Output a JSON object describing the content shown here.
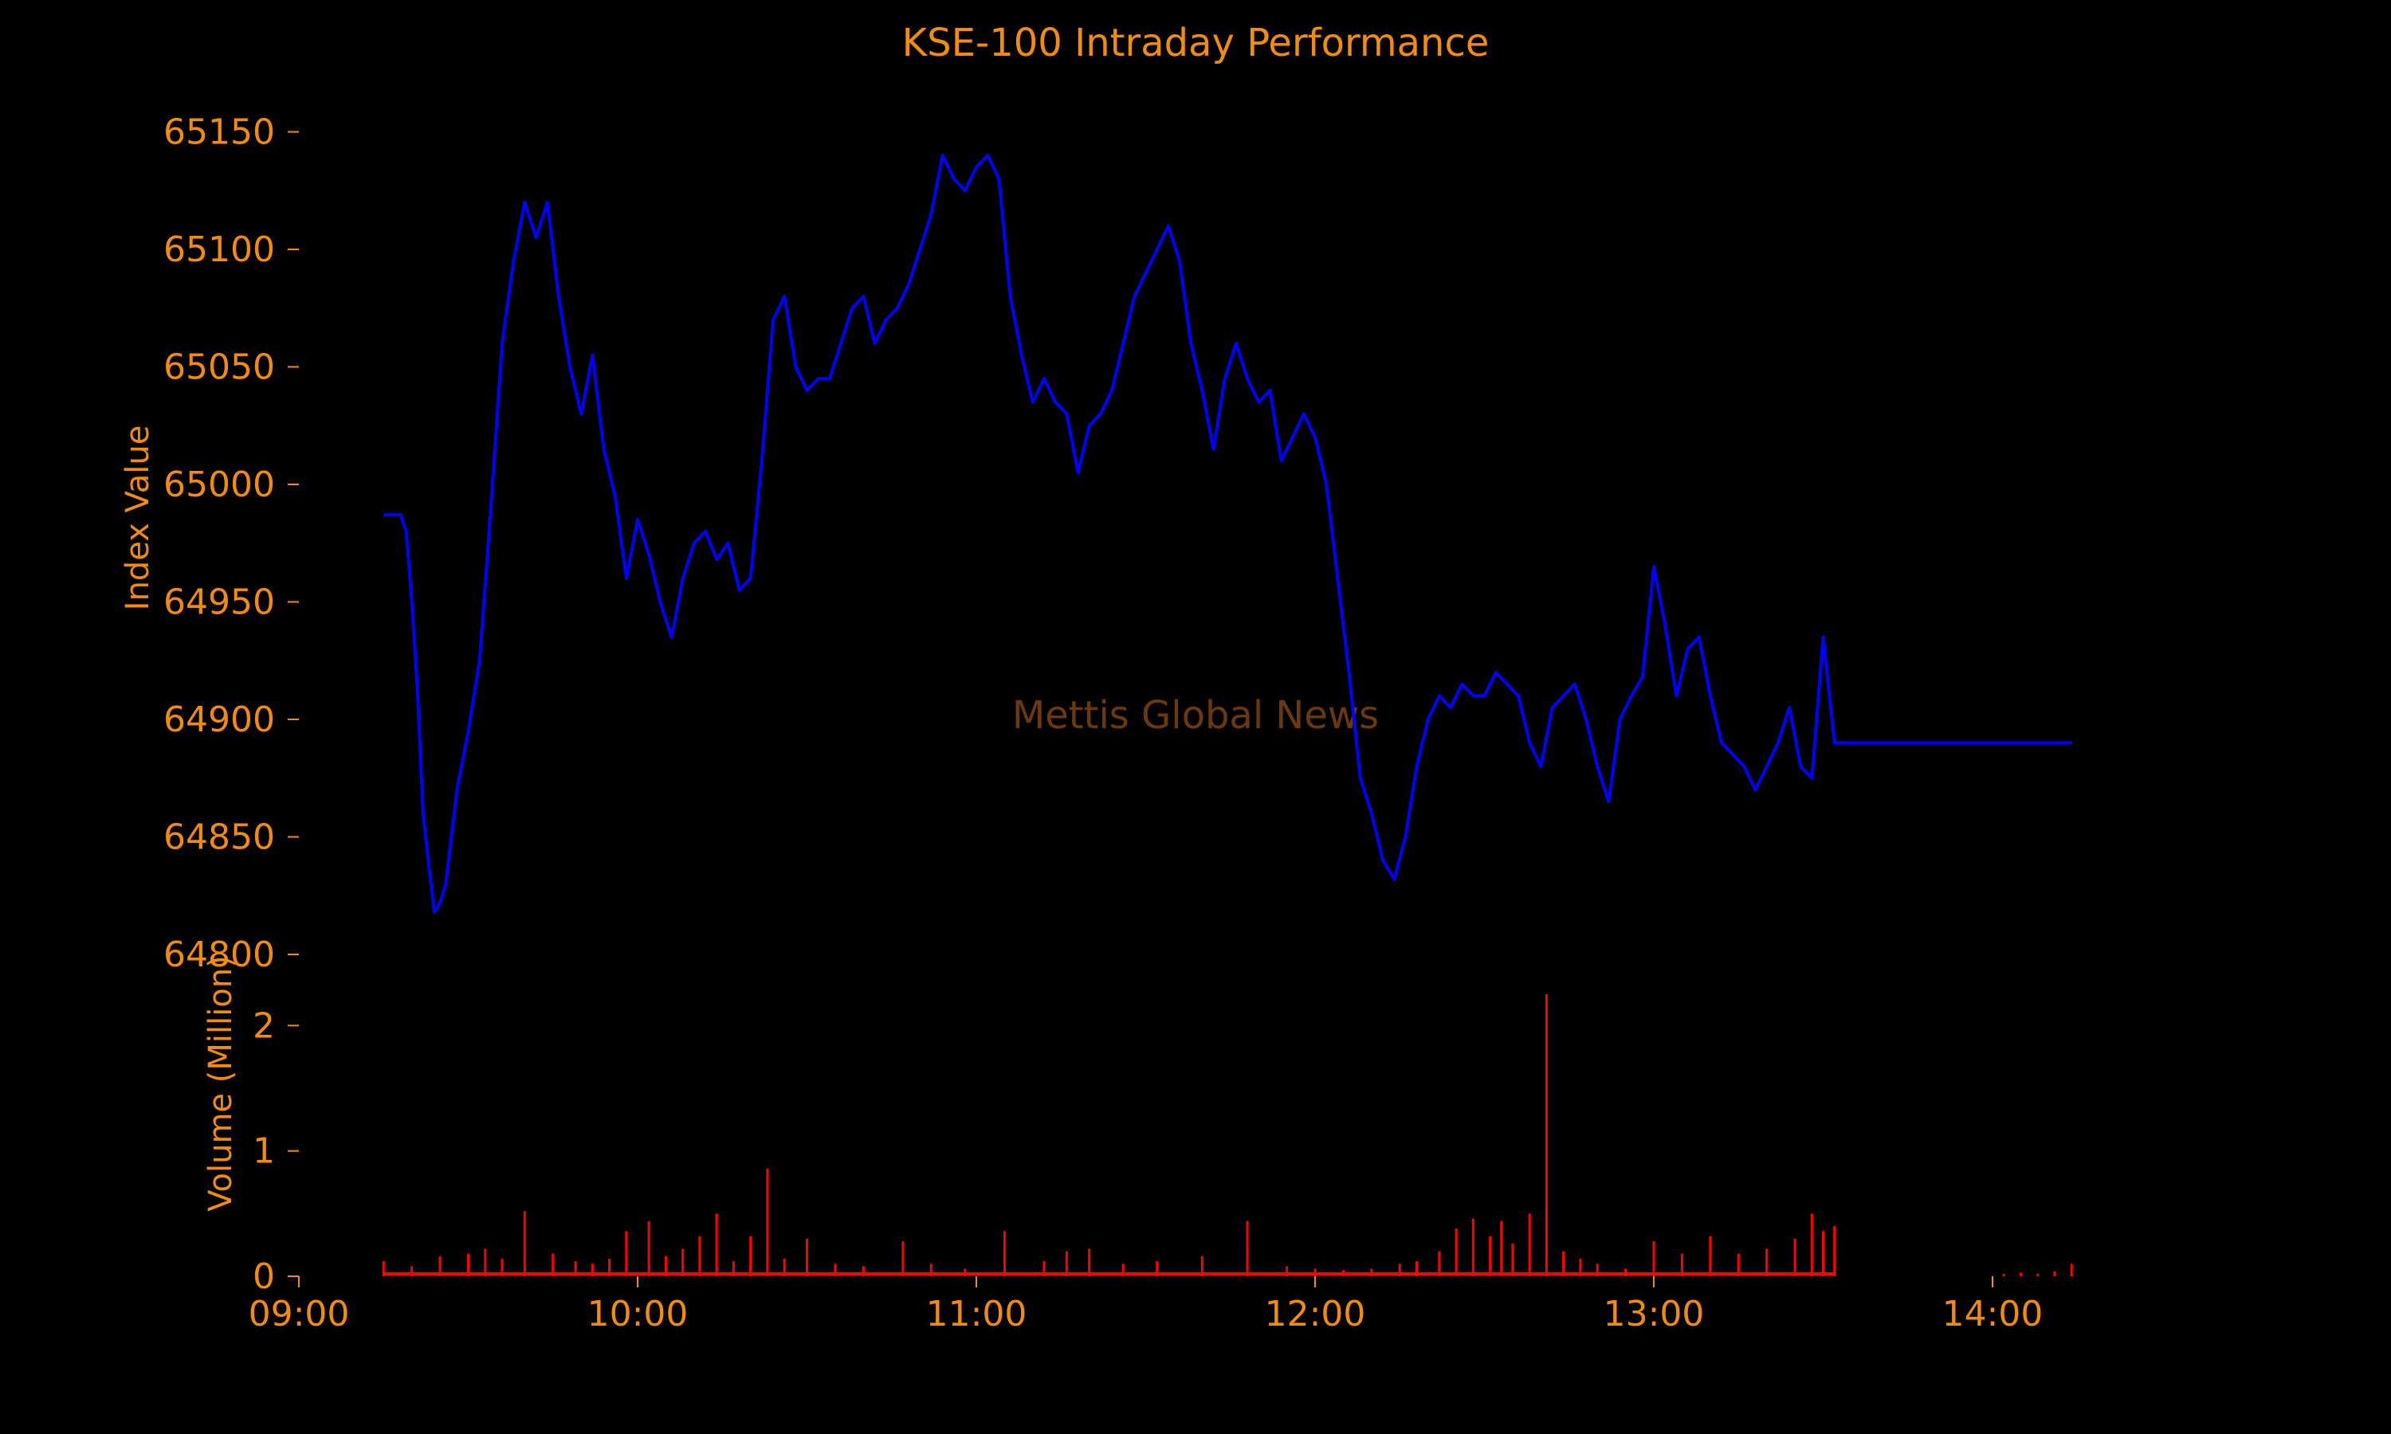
{
  "chart_data": {
    "type": "line",
    "title": "KSE-100 Intraday Performance",
    "watermark": "Mettis Global News",
    "colors": {
      "background": "#000000",
      "text": "#f28c0f",
      "index_line": "#0000ff",
      "volume_bars": "#ff0000",
      "watermark": "#6b3a0c"
    },
    "grid": false,
    "x_axis": {
      "range": [
        "09:00",
        "14:30"
      ],
      "tick_labels": [
        "09:00",
        "10:00",
        "11:00",
        "12:00",
        "13:00",
        "14:00"
      ]
    },
    "index_panel": {
      "ylabel": "Index Value",
      "ylim": [
        64800,
        65160
      ],
      "yticks": [
        64800,
        64850,
        64900,
        64950,
        65000,
        65050,
        65100,
        65150
      ],
      "series": [
        {
          "x": [
            "09:15",
            "09:18",
            "09:19",
            "09:20",
            "09:21",
            "09:22",
            "09:23",
            "09:24",
            "09:25",
            "09:26",
            "09:28",
            "09:30",
            "09:32",
            "09:34",
            "09:36",
            "09:38",
            "09:40",
            "09:42",
            "09:44",
            "09:46",
            "09:48",
            "09:50",
            "09:52",
            "09:54",
            "09:56",
            "09:58",
            "10:00",
            "10:02",
            "10:04",
            "10:06",
            "10:08",
            "10:10",
            "10:12",
            "10:14",
            "10:16",
            "10:18",
            "10:20",
            "10:22",
            "10:24",
            "10:26",
            "10:28",
            "10:30",
            "10:32",
            "10:34",
            "10:36",
            "10:38",
            "10:40",
            "10:42",
            "10:44",
            "10:46",
            "10:48",
            "10:50",
            "10:52",
            "10:54",
            "10:56",
            "10:58",
            "11:00",
            "11:02",
            "11:04",
            "11:06",
            "11:08",
            "11:10",
            "11:12",
            "11:14",
            "11:16",
            "11:18",
            "11:20",
            "11:22",
            "11:24",
            "11:26",
            "11:28",
            "11:30",
            "11:32",
            "11:34",
            "11:36",
            "11:38",
            "11:40",
            "11:42",
            "11:44",
            "11:46",
            "11:48",
            "11:50",
            "11:52",
            "11:54",
            "11:56",
            "11:58",
            "12:00",
            "12:02",
            "12:04",
            "12:06",
            "12:08",
            "12:10",
            "12:12",
            "12:14",
            "12:16",
            "12:18",
            "12:20",
            "12:22",
            "12:24",
            "12:26",
            "12:28",
            "12:30",
            "12:32",
            "12:34",
            "12:36",
            "12:38",
            "12:40",
            "12:42",
            "12:44",
            "12:46",
            "12:48",
            "12:50",
            "12:52",
            "12:54",
            "12:56",
            "12:58",
            "13:00",
            "13:02",
            "13:04",
            "13:06",
            "13:08",
            "13:10",
            "13:12",
            "13:14",
            "13:16",
            "13:18",
            "13:20",
            "13:22",
            "13:24",
            "13:26",
            "13:28",
            "13:30",
            "13:32",
            "14:14"
          ],
          "values": [
            64987,
            64987,
            64980,
            64950,
            64912,
            64860,
            64838,
            64818,
            64822,
            64830,
            64870,
            64895,
            64925,
            64990,
            65060,
            65095,
            65120,
            65105,
            65120,
            65080,
            65050,
            65030,
            65055,
            65015,
            64995,
            64960,
            64985,
            64970,
            64950,
            64935,
            64960,
            64975,
            64980,
            64968,
            64975,
            64955,
            64960,
            65010,
            65070,
            65080,
            65050,
            65040,
            65045,
            65045,
            65060,
            65075,
            65080,
            65060,
            65070,
            65075,
            65085,
            65100,
            65115,
            65140,
            65130,
            65125,
            65135,
            65140,
            65130,
            65080,
            65055,
            65035,
            65045,
            65035,
            65030,
            65005,
            65025,
            65030,
            65040,
            65060,
            65080,
            65090,
            65100,
            65110,
            65095,
            65060,
            65040,
            65015,
            65045,
            65060,
            65045,
            65035,
            65040,
            65010,
            65020,
            65030,
            65020,
            65000,
            64960,
            64920,
            64875,
            64860,
            64840,
            64832,
            64850,
            64880,
            64900,
            64910,
            64905,
            64915,
            64910,
            64910,
            64920,
            64915,
            64910,
            64890,
            64880,
            64905,
            64910,
            64915,
            64900,
            64880,
            64865,
            64900,
            64910,
            64918,
            64965,
            64940,
            64910,
            64930,
            64935,
            64910,
            64890,
            64885,
            64880,
            64870,
            64880,
            64890,
            64905,
            64880,
            64875,
            64935,
            64890,
            64890
          ]
        }
      ]
    },
    "volume_panel": {
      "ylabel": "Volume (Million)",
      "ylim": [
        0,
        2.25
      ],
      "yticks": [
        0,
        1,
        2
      ],
      "series": [
        {
          "x": [
            "09:15",
            "09:20",
            "09:25",
            "09:30",
            "09:33",
            "09:36",
            "09:40",
            "09:45",
            "09:49",
            "09:52",
            "09:55",
            "09:58",
            "10:02",
            "10:05",
            "10:08",
            "10:11",
            "10:14",
            "10:17",
            "10:20",
            "10:23",
            "10:26",
            "10:30",
            "10:35",
            "10:40",
            "10:47",
            "10:52",
            "10:58",
            "11:05",
            "11:12",
            "11:16",
            "11:20",
            "11:26",
            "11:32",
            "11:40",
            "11:48",
            "11:55",
            "12:00",
            "12:05",
            "12:10",
            "12:15",
            "12:18",
            "12:22",
            "12:25",
            "12:28",
            "12:31",
            "12:33",
            "12:35",
            "12:38",
            "12:41",
            "12:44",
            "12:47",
            "12:50",
            "12:55",
            "13:00",
            "13:05",
            "13:10",
            "13:15",
            "13:20",
            "13:25",
            "13:28",
            "13:30",
            "13:32",
            "14:02",
            "14:05",
            "14:08",
            "14:11",
            "14:14"
          ],
          "values": [
            0.12,
            0.08,
            0.16,
            0.18,
            0.22,
            0.14,
            0.52,
            0.18,
            0.12,
            0.1,
            0.14,
            0.36,
            0.44,
            0.16,
            0.22,
            0.32,
            0.5,
            0.12,
            0.32,
            0.86,
            0.14,
            0.3,
            0.1,
            0.08,
            0.28,
            0.1,
            0.06,
            0.36,
            0.12,
            0.2,
            0.22,
            0.1,
            0.12,
            0.16,
            0.44,
            0.08,
            0.06,
            0.05,
            0.06,
            0.1,
            0.12,
            0.2,
            0.38,
            0.46,
            0.32,
            0.44,
            0.26,
            0.5,
            2.25,
            0.2,
            0.14,
            0.1,
            0.06,
            0.28,
            0.18,
            0.32,
            0.18,
            0.22,
            0.3,
            0.5,
            0.36,
            0.4,
            0.02,
            0.03,
            0.02,
            0.04,
            0.1
          ]
        }
      ]
    }
  }
}
